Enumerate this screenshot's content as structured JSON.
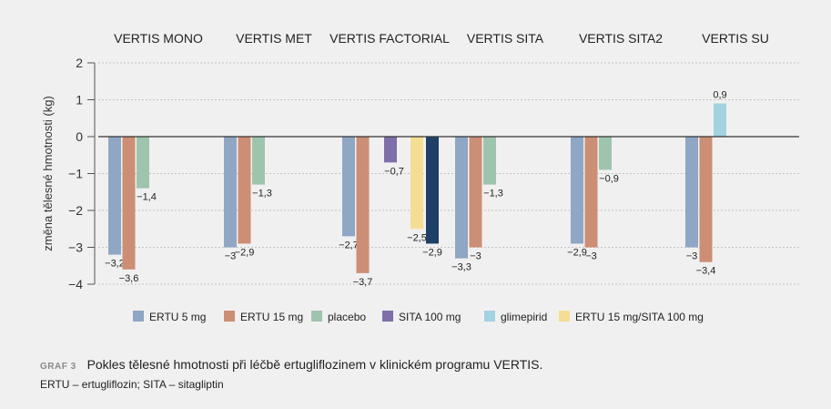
{
  "chart_data": {
    "type": "bar",
    "groups": [
      "VERTIS MONO",
      "VERTIS MET",
      "VERTIS FACTORIAL",
      "VERTIS SITA",
      "VERTIS SITA2",
      "VERTIS SU"
    ],
    "ylabel": "změna tělesné hmotnosti (kg)",
    "ylim": [
      -4,
      2
    ],
    "yticks": [
      "2",
      "1",
      "0",
      "−1",
      "−2",
      "−3",
      "−4"
    ],
    "grid": true,
    "legend_position": "bottom",
    "series_names": [
      "ERTU 5 mg",
      "ERTU 15 mg",
      "placebo",
      "SITA 100 mg",
      "glimepirid",
      "ERTU 15 mg/SITA 100 mg"
    ],
    "colors": {
      "ertu5": "#8fa6c4",
      "ertu15": "#cc8e74",
      "placebo": "#9fc4ad",
      "sita100": "#7e6fa8",
      "glimepirid": "#a3d2e1",
      "ertu15sita": "#f5de94",
      "ertu5sita": "#1f4066"
    },
    "bars": [
      [
        {
          "series": "ertu5",
          "value": -3.2,
          "label": "−3,2"
        },
        {
          "series": "ertu15",
          "value": -3.6,
          "label": "−3,6"
        },
        {
          "series": "placebo",
          "value": -1.4,
          "label": "−1,4"
        }
      ],
      [
        {
          "series": "ertu5",
          "value": -3.0,
          "label": "−3"
        },
        {
          "series": "ertu15",
          "value": -2.9,
          "label": "−2,9"
        },
        {
          "series": "placebo",
          "value": -1.3,
          "label": "−1,3"
        }
      ],
      [
        {
          "series": "ertu5",
          "value": -2.7,
          "label": "−2,7"
        },
        {
          "series": "ertu15",
          "value": -3.7,
          "label": "−3,7"
        },
        {
          "series": "sita100",
          "value": -0.7,
          "label": "−0,7"
        },
        {
          "series": "ertu15sita",
          "value": -2.5,
          "label": "−2,5"
        },
        {
          "series": "ertu5sita",
          "value": -2.9,
          "label": "−2,9"
        }
      ],
      [
        {
          "series": "ertu5",
          "value": -3.3,
          "label": "−3,3"
        },
        {
          "series": "ertu15",
          "value": -3.0,
          "label": "−3"
        },
        {
          "series": "placebo",
          "value": -1.3,
          "label": "−1,3"
        }
      ],
      [
        {
          "series": "ertu5",
          "value": -2.9,
          "label": "−2,9"
        },
        {
          "series": "ertu15",
          "value": -3.0,
          "label": "−3"
        },
        {
          "series": "placebo",
          "value": -0.9,
          "label": "−0,9"
        }
      ],
      [
        {
          "series": "ertu5",
          "value": -3.0,
          "label": "−3"
        },
        {
          "series": "ertu15",
          "value": -3.4,
          "label": "−3,4"
        },
        {
          "series": "glimepirid",
          "value": 0.9,
          "label": "0,9"
        }
      ]
    ],
    "legend": [
      {
        "name": "ERTU 5 mg",
        "color_key": "ertu5"
      },
      {
        "name": "ERTU 15 mg",
        "color_key": "ertu15"
      },
      {
        "name": "placebo",
        "color_key": "placebo"
      },
      {
        "name": "SITA 100 mg",
        "color_key": "sita100"
      },
      {
        "name": "glimepirid",
        "color_key": "glimepirid"
      },
      {
        "name": "ERTU 15 mg/SITA 100 mg",
        "color_key": "ertu15sita"
      }
    ]
  },
  "caption": {
    "label": "GRAF 3",
    "text": "Pokles tělesné hmotnosti při léčbě ertugliflozinem v klinickém programu VERTIS."
  },
  "abbreviations": "ERTU – ertugliflozin; SITA – sitagliptin"
}
